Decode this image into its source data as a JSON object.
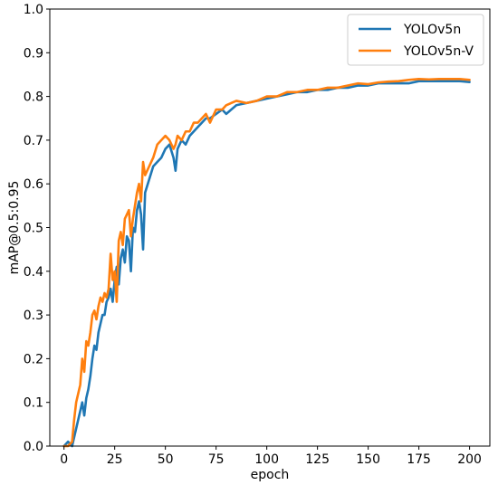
{
  "chart_data": {
    "type": "line",
    "title": "",
    "xlabel": "epoch",
    "ylabel": "mAP@0.5:0.95",
    "xlim": [
      -7,
      210
    ],
    "ylim": [
      0,
      1
    ],
    "xticks": [
      "0",
      "25",
      "50",
      "75",
      "100",
      "125",
      "150",
      "175",
      "200"
    ],
    "yticks": [
      "0.0",
      "0.1",
      "0.2",
      "0.3",
      "0.4",
      "0.5",
      "0.6",
      "0.7",
      "0.8",
      "0.9",
      "1.0"
    ],
    "grid": false,
    "legend_position": "top-right",
    "series": [
      {
        "name": "YOLOv5n",
        "color": "#1f77b4",
        "x": [
          0,
          2,
          4,
          5,
          6,
          7,
          8,
          9,
          10,
          11,
          12,
          13,
          14,
          15,
          16,
          17,
          18,
          19,
          20,
          21,
          22,
          23,
          24,
          25,
          26,
          27,
          28,
          29,
          30,
          31,
          32,
          33,
          34,
          35,
          36,
          37,
          38,
          39,
          40,
          42,
          44,
          46,
          48,
          50,
          52,
          54,
          55,
          56,
          58,
          60,
          62,
          64,
          66,
          68,
          70,
          72,
          75,
          78,
          80,
          85,
          90,
          95,
          100,
          105,
          110,
          115,
          120,
          125,
          130,
          135,
          140,
          145,
          150,
          155,
          160,
          165,
          170,
          175,
          180,
          185,
          190,
          195,
          200
        ],
        "y": [
          0.0,
          0.01,
          0.0,
          0.02,
          0.04,
          0.06,
          0.08,
          0.1,
          0.07,
          0.11,
          0.13,
          0.16,
          0.2,
          0.23,
          0.22,
          0.26,
          0.28,
          0.3,
          0.3,
          0.33,
          0.34,
          0.36,
          0.33,
          0.38,
          0.41,
          0.37,
          0.43,
          0.45,
          0.42,
          0.48,
          0.47,
          0.4,
          0.5,
          0.49,
          0.54,
          0.56,
          0.53,
          0.45,
          0.58,
          0.61,
          0.64,
          0.65,
          0.66,
          0.68,
          0.69,
          0.66,
          0.63,
          0.68,
          0.7,
          0.69,
          0.71,
          0.72,
          0.73,
          0.74,
          0.75,
          0.75,
          0.76,
          0.77,
          0.76,
          0.78,
          0.785,
          0.79,
          0.795,
          0.8,
          0.805,
          0.81,
          0.81,
          0.815,
          0.815,
          0.82,
          0.82,
          0.825,
          0.825,
          0.83,
          0.83,
          0.83,
          0.83,
          0.835,
          0.835,
          0.835,
          0.835,
          0.835,
          0.833
        ]
      },
      {
        "name": "YOLOv5n-V",
        "color": "#ff7f0e",
        "x": [
          0,
          2,
          4,
          5,
          6,
          7,
          8,
          9,
          10,
          11,
          12,
          13,
          14,
          15,
          16,
          17,
          18,
          19,
          20,
          21,
          22,
          23,
          24,
          25,
          26,
          27,
          28,
          29,
          30,
          31,
          32,
          33,
          34,
          35,
          36,
          37,
          38,
          39,
          40,
          42,
          44,
          46,
          48,
          50,
          52,
          54,
          55,
          56,
          58,
          60,
          62,
          64,
          66,
          68,
          70,
          72,
          75,
          78,
          80,
          85,
          90,
          95,
          100,
          105,
          110,
          115,
          120,
          125,
          130,
          135,
          140,
          145,
          150,
          155,
          160,
          165,
          170,
          175,
          180,
          185,
          190,
          195,
          200
        ],
        "y": [
          0.0,
          0.0,
          0.01,
          0.06,
          0.1,
          0.12,
          0.14,
          0.2,
          0.17,
          0.24,
          0.23,
          0.26,
          0.3,
          0.31,
          0.29,
          0.32,
          0.34,
          0.33,
          0.35,
          0.34,
          0.36,
          0.44,
          0.38,
          0.4,
          0.33,
          0.47,
          0.49,
          0.46,
          0.52,
          0.53,
          0.54,
          0.48,
          0.52,
          0.55,
          0.58,
          0.6,
          0.56,
          0.65,
          0.62,
          0.64,
          0.66,
          0.69,
          0.7,
          0.71,
          0.7,
          0.68,
          0.69,
          0.71,
          0.7,
          0.72,
          0.72,
          0.74,
          0.74,
          0.75,
          0.76,
          0.74,
          0.77,
          0.77,
          0.78,
          0.79,
          0.785,
          0.79,
          0.8,
          0.8,
          0.81,
          0.81,
          0.815,
          0.815,
          0.82,
          0.82,
          0.825,
          0.83,
          0.828,
          0.832,
          0.834,
          0.835,
          0.838,
          0.84,
          0.839,
          0.84,
          0.84,
          0.84,
          0.838
        ]
      }
    ]
  }
}
